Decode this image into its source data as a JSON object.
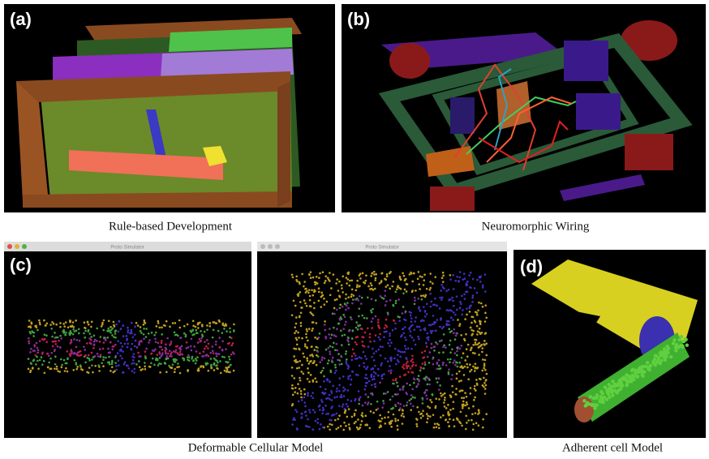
{
  "panels": [
    {
      "label": "(a)",
      "caption": "Rule-based Development"
    },
    {
      "label": "(b)",
      "caption": "Neuromorphic Wiring"
    },
    {
      "label": "(c)",
      "caption": "Deformable Cellular Model",
      "windows": [
        {
          "title": "Proto Simulator"
        },
        {
          "title": "Proto Simulator"
        }
      ]
    },
    {
      "label": "(d)",
      "caption": "Adherent cell Model"
    }
  ]
}
